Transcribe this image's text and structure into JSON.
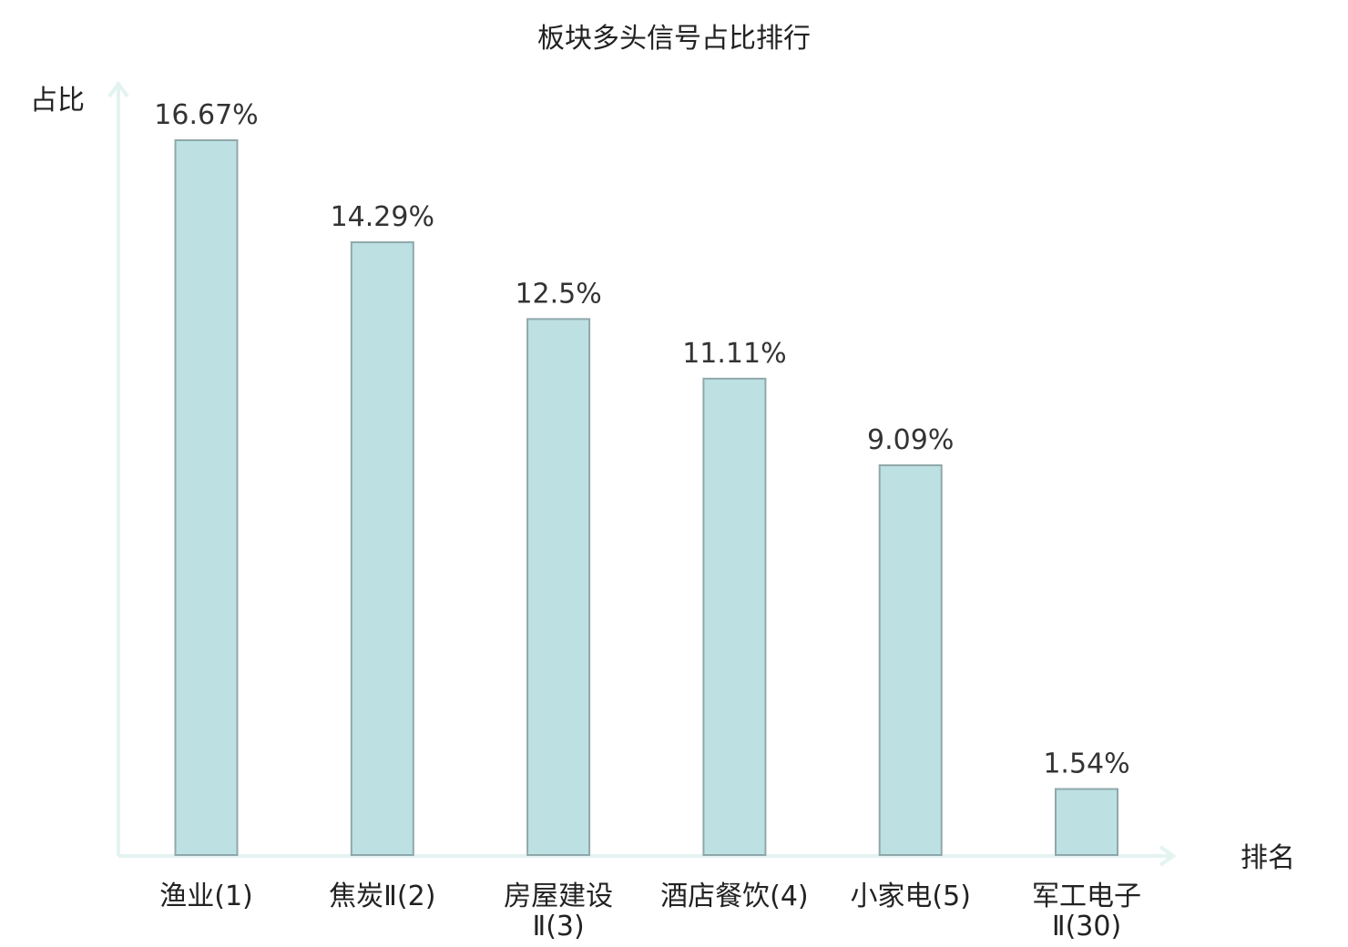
{
  "chart_data": {
    "type": "bar",
    "title": "板块多头信号占比排行",
    "ylabel": "占比",
    "xlabel": "排名",
    "categories": [
      [
        "渔业(1)"
      ],
      [
        "焦炭Ⅱ(2)"
      ],
      [
        "房屋建设",
        "Ⅱ(3)"
      ],
      [
        "酒店餐饮(4)"
      ],
      [
        "小家电(5)"
      ],
      [
        "军工电子",
        "Ⅱ(30)"
      ]
    ],
    "values": [
      16.67,
      14.29,
      12.5,
      11.11,
      9.09,
      1.54
    ],
    "value_labels": [
      "16.67%",
      "14.29%",
      "12.5%",
      "11.11%",
      "9.09%",
      "1.54%"
    ],
    "highlight_index": 5,
    "ylim": [
      0,
      16.67
    ],
    "grid": false,
    "colors": {
      "bar_fill": "#bde0e3",
      "bar_stroke": "#8fa8aa",
      "axis": "#e3f3f1",
      "text": "#222222",
      "highlight_text": "#e0201b"
    }
  }
}
